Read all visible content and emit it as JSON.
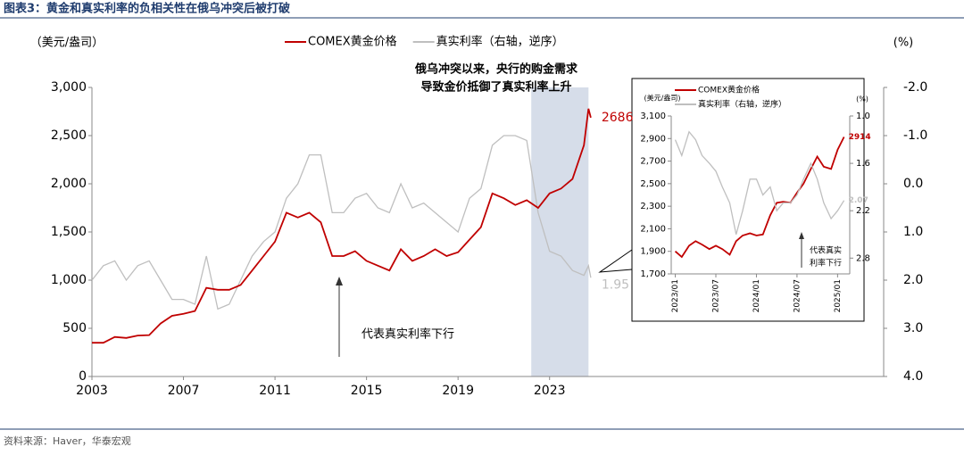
{
  "header": {
    "title": "图表3：黄金和真实利率的负相关性在俄乌冲突后被打破"
  },
  "footer": {
    "source": "资料来源：Haver，华泰宏观"
  },
  "chart_data": [
    {
      "type": "line",
      "y_label": "（美元/盎司）",
      "y2_label": "(%)",
      "annotation_top": [
        "俄乌冲突以来，央行的购金需求",
        "导致金价抵御了真实利率上升"
      ],
      "annotation_arrow": "代表真实利率下行",
      "shade": [
        2022.2,
        2024.7
      ],
      "shade_color": "#d6dde9",
      "xlim": [
        2003,
        2037.6
      ],
      "xticks": [
        2003,
        2007,
        2011,
        2015,
        2019,
        2023
      ],
      "ylim": [
        0,
        3000
      ],
      "yticks": [
        0,
        500,
        {
          "value": 1000,
          "label": "1,000"
        },
        {
          "value": 1500,
          "label": "1,500"
        },
        {
          "value": 2000,
          "label": "2,000"
        },
        {
          "value": 2500,
          "label": "2,500"
        },
        {
          "value": 3000,
          "label": "3,000"
        }
      ],
      "y2lim": [
        4,
        -2
      ],
      "y2_inverted": true,
      "y2ticks": [
        {
          "value": -2,
          "label": "-2.0"
        },
        {
          "value": -1,
          "label": "-1.0"
        },
        {
          "value": 0,
          "label": "0.0"
        },
        {
          "value": 1,
          "label": "1.0"
        },
        {
          "value": 2,
          "label": "2.0"
        },
        {
          "value": 3,
          "label": "3.0"
        },
        {
          "value": 4,
          "label": "4.0"
        }
      ],
      "x": [
        2003.0,
        2003.5,
        2004.0,
        2004.5,
        2005.0,
        2005.5,
        2006.0,
        2006.5,
        2007.0,
        2007.5,
        2008.0,
        2008.5,
        2009.0,
        2009.5,
        2010.0,
        2010.5,
        2011.0,
        2011.5,
        2012.0,
        2012.5,
        2013.0,
        2013.5,
        2014.0,
        2014.5,
        2015.0,
        2015.5,
        2016.0,
        2016.5,
        2017.0,
        2017.5,
        2018.0,
        2018.5,
        2019.0,
        2019.5,
        2020.0,
        2020.5,
        2021.0,
        2021.5,
        2022.0,
        2022.5,
        2023.0,
        2023.5,
        2024.0,
        2024.5,
        2024.7,
        2024.8
      ],
      "series": [
        {
          "name": "真实利率（右轴，逆序）",
          "color": "#bfbfbf",
          "axis": "y2",
          "values": [
            2.0,
            1.7,
            1.6,
            2.0,
            1.7,
            1.6,
            2.0,
            2.4,
            2.4,
            2.5,
            1.5,
            2.6,
            2.5,
            2.0,
            1.5,
            1.2,
            1.0,
            0.3,
            0.0,
            -0.6,
            -0.6,
            0.6,
            0.6,
            0.3,
            0.2,
            0.5,
            0.6,
            0.0,
            0.5,
            0.4,
            0.6,
            0.8,
            1.0,
            0.3,
            0.1,
            -0.8,
            -1.0,
            -1.0,
            -0.9,
            0.6,
            1.4,
            1.5,
            1.8,
            1.9,
            1.7,
            1.95
          ]
        },
        {
          "name": "COMEX黄金价格",
          "color": "#c00000",
          "values": [
            350,
            350,
            410,
            400,
            425,
            430,
            550,
            630,
            650,
            680,
            920,
            900,
            900,
            950,
            1100,
            1250,
            1400,
            1700,
            1650,
            1700,
            1600,
            1250,
            1250,
            1300,
            1200,
            1150,
            1100,
            1320,
            1200,
            1250,
            1320,
            1250,
            1290,
            1420,
            1550,
            1900,
            1850,
            1780,
            1830,
            1750,
            1900,
            1950,
            2050,
            2400,
            2780,
            2686
          ]
        }
      ]
    },
    {
      "type": "line",
      "y_label": "(美元/盎司)",
      "y2_label": "(%)",
      "annotation_arrow": [
        "代表真实",
        "利率下行"
      ],
      "xlim": [
        2022.95,
        2025.15
      ],
      "xticks": [
        {
          "value": 2023.0,
          "label": "2023/01"
        },
        {
          "value": 2023.5,
          "label": "2023/07"
        },
        {
          "value": 2024.0,
          "label": "2024/01"
        },
        {
          "value": 2024.5,
          "label": "2024/07"
        },
        {
          "value": 2025.0,
          "label": "2025/01"
        }
      ],
      "ylim": [
        1700,
        3100
      ],
      "yticks": [
        {
          "value": 1700,
          "label": "1,700"
        },
        {
          "value": 1900,
          "label": "1,900"
        },
        {
          "value": 2100,
          "label": "2,100"
        },
        {
          "value": 2300,
          "label": "2,300"
        },
        {
          "value": 2500,
          "label": "2,500"
        },
        {
          "value": 2700,
          "label": "2,700"
        },
        {
          "value": 2900,
          "label": "2,900"
        },
        {
          "value": 3100,
          "label": "3,100"
        }
      ],
      "y2lim": [
        3.0,
        1.0
      ],
      "y2_inverted": true,
      "y2ticks": [
        {
          "value": 1.0,
          "label": "1.0"
        },
        1.6,
        2.2,
        2.8
      ],
      "x": [
        2023.0,
        2023.08,
        2023.17,
        2023.25,
        2023.33,
        2023.42,
        2023.5,
        2023.58,
        2023.67,
        2023.75,
        2023.83,
        2023.92,
        2024.0,
        2024.08,
        2024.17,
        2024.25,
        2024.33,
        2024.42,
        2024.5,
        2024.58,
        2024.67,
        2024.75,
        2024.83,
        2024.92,
        2025.0,
        2025.08
      ],
      "series": [
        {
          "name": "COMEX黄金价格",
          "color": "#c00000",
          "values": [
            1900,
            1850,
            1950,
            1990,
            1960,
            1920,
            1950,
            1920,
            1870,
            1990,
            2040,
            2060,
            2040,
            2050,
            2220,
            2330,
            2340,
            2330,
            2420,
            2500,
            2630,
            2740,
            2650,
            2630,
            2800,
            2914
          ]
        },
        {
          "name": "真实利率（右轴，逆序）",
          "color": "#bfbfbf",
          "axis": "y2",
          "values": [
            1.3,
            1.5,
            1.2,
            1.3,
            1.5,
            1.6,
            1.7,
            1.9,
            2.1,
            2.5,
            2.2,
            1.8,
            1.8,
            2.0,
            1.9,
            2.2,
            2.1,
            2.1,
            2.0,
            1.8,
            1.6,
            1.8,
            2.1,
            2.3,
            2.2,
            2.07
          ]
        }
      ]
    }
  ]
}
